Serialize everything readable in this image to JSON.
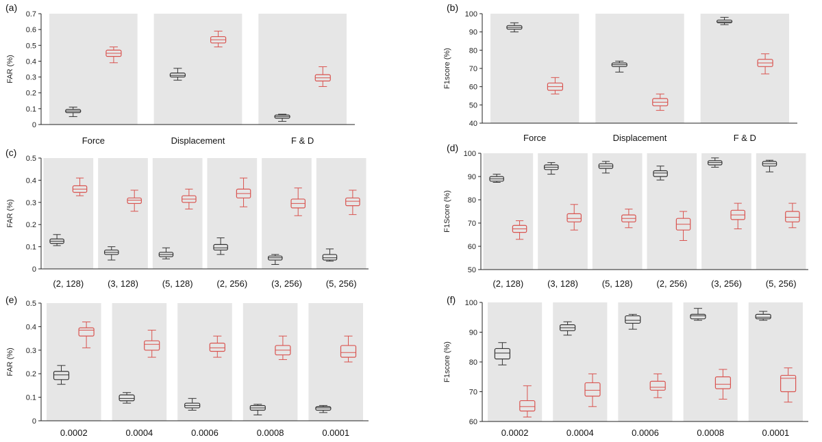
{
  "colors": {
    "background_band": "#e6e6e6",
    "series_a": "#333333",
    "series_b": "#d9534f",
    "axis": "#222222"
  },
  "chart_data": [
    {
      "id": "a",
      "panel_label": "(a)",
      "type": "box",
      "ylabel": "FAR (%)",
      "ylim": [
        0,
        0.7
      ],
      "yticks": [
        "0",
        "0.1",
        "0.2",
        "0.3",
        "0.4",
        "0.5",
        "0.6",
        "0.7"
      ],
      "categories": [
        "Force",
        "Displacement",
        "F & D"
      ],
      "series": [
        {
          "name": "dark",
          "boxes": [
            {
              "whislo": 0.05,
              "q1": 0.075,
              "med": 0.085,
              "q3": 0.095,
              "whishi": 0.11
            },
            {
              "whislo": 0.28,
              "q1": 0.3,
              "med": 0.31,
              "q3": 0.325,
              "whishi": 0.355
            },
            {
              "whislo": 0.02,
              "q1": 0.04,
              "med": 0.05,
              "q3": 0.06,
              "whishi": 0.065
            }
          ]
        },
        {
          "name": "red",
          "boxes": [
            {
              "whislo": 0.39,
              "q1": 0.43,
              "med": 0.45,
              "q3": 0.47,
              "whishi": 0.49
            },
            {
              "whislo": 0.49,
              "q1": 0.515,
              "med": 0.535,
              "q3": 0.555,
              "whishi": 0.59
            },
            {
              "whislo": 0.24,
              "q1": 0.275,
              "med": 0.295,
              "q3": 0.315,
              "whishi": 0.365
            }
          ]
        }
      ]
    },
    {
      "id": "b",
      "panel_label": "(b)",
      "type": "box",
      "ylabel": "F1score (%)",
      "ylim": [
        40,
        100
      ],
      "yticks": [
        "40",
        "50",
        "60",
        "70",
        "80",
        "90",
        "100"
      ],
      "categories": [
        "Force",
        "Displacement",
        "F & D"
      ],
      "series": [
        {
          "name": "dark",
          "boxes": [
            {
              "whislo": 90,
              "q1": 91.5,
              "med": 92.5,
              "q3": 93.5,
              "whishi": 95
            },
            {
              "whislo": 68,
              "q1": 71,
              "med": 72,
              "q3": 73,
              "whishi": 74
            },
            {
              "whislo": 94,
              "q1": 95,
              "med": 95.5,
              "q3": 96.5,
              "whishi": 98
            }
          ]
        },
        {
          "name": "red",
          "boxes": [
            {
              "whislo": 56,
              "q1": 58,
              "med": 60,
              "q3": 62,
              "whishi": 65
            },
            {
              "whislo": 47,
              "q1": 49.5,
              "med": 51.5,
              "q3": 53.5,
              "whishi": 56
            },
            {
              "whislo": 67,
              "q1": 71,
              "med": 73,
              "q3": 75,
              "whishi": 78
            }
          ]
        }
      ]
    },
    {
      "id": "c",
      "panel_label": "(c)",
      "type": "box",
      "ylabel": "FAR (%)",
      "ylim": [
        0,
        0.5
      ],
      "yticks": [
        "0",
        "0.1",
        "0.2",
        "0.3",
        "0.4",
        "0.5"
      ],
      "categories": [
        "(2, 128)",
        "(3, 128)",
        "(5, 128)",
        "(2, 256)",
        "(3, 256)",
        "(5, 256)"
      ],
      "series": [
        {
          "name": "dark",
          "boxes": [
            {
              "whislo": 0.105,
              "q1": 0.115,
              "med": 0.125,
              "q3": 0.135,
              "whishi": 0.155
            },
            {
              "whislo": 0.04,
              "q1": 0.065,
              "med": 0.075,
              "q3": 0.085,
              "whishi": 0.1
            },
            {
              "whislo": 0.045,
              "q1": 0.055,
              "med": 0.065,
              "q3": 0.075,
              "whishi": 0.095
            },
            {
              "whislo": 0.065,
              "q1": 0.085,
              "med": 0.095,
              "q3": 0.11,
              "whishi": 0.14
            },
            {
              "whislo": 0.02,
              "q1": 0.04,
              "med": 0.05,
              "q3": 0.058,
              "whishi": 0.065
            },
            {
              "whislo": 0.035,
              "q1": 0.04,
              "med": 0.05,
              "q3": 0.065,
              "whishi": 0.09
            }
          ]
        },
        {
          "name": "red",
          "boxes": [
            {
              "whislo": 0.33,
              "q1": 0.345,
              "med": 0.36,
              "q3": 0.375,
              "whishi": 0.41
            },
            {
              "whislo": 0.26,
              "q1": 0.295,
              "med": 0.31,
              "q3": 0.32,
              "whishi": 0.355
            },
            {
              "whislo": 0.27,
              "q1": 0.3,
              "med": 0.315,
              "q3": 0.33,
              "whishi": 0.36
            },
            {
              "whislo": 0.28,
              "q1": 0.32,
              "med": 0.34,
              "q3": 0.36,
              "whishi": 0.41
            },
            {
              "whislo": 0.24,
              "q1": 0.275,
              "med": 0.295,
              "q3": 0.315,
              "whishi": 0.365
            },
            {
              "whislo": 0.245,
              "q1": 0.285,
              "med": 0.305,
              "q3": 0.32,
              "whishi": 0.355
            }
          ]
        }
      ]
    },
    {
      "id": "d",
      "panel_label": "(d)",
      "type": "box",
      "ylabel": "F1Score (%)",
      "ylim": [
        50,
        100
      ],
      "yticks": [
        "50",
        "60",
        "70",
        "80",
        "90",
        "100"
      ],
      "categories": [
        "(2, 128)",
        "(3, 128)",
        "(5, 128)",
        "(2, 256)",
        "(3, 256)",
        "(5, 256)"
      ],
      "series": [
        {
          "name": "dark",
          "boxes": [
            {
              "whislo": 87.5,
              "q1": 88,
              "med": 89,
              "q3": 90,
              "whishi": 91
            },
            {
              "whislo": 91,
              "q1": 93,
              "med": 94,
              "q3": 95,
              "whishi": 96
            },
            {
              "whislo": 91.5,
              "q1": 93.5,
              "med": 94.5,
              "q3": 95.5,
              "whishi": 96.5
            },
            {
              "whislo": 88.5,
              "q1": 90,
              "med": 91.5,
              "q3": 92.5,
              "whishi": 94.5
            },
            {
              "whislo": 94,
              "q1": 95,
              "med": 96,
              "q3": 96.8,
              "whishi": 98
            },
            {
              "whislo": 92,
              "q1": 94.5,
              "med": 95.5,
              "q3": 96.5,
              "whishi": 97
            }
          ]
        },
        {
          "name": "red",
          "boxes": [
            {
              "whislo": 63,
              "q1": 66,
              "med": 67.5,
              "q3": 69,
              "whishi": 71
            },
            {
              "whislo": 67,
              "q1": 70.5,
              "med": 72,
              "q3": 74,
              "whishi": 78
            },
            {
              "whislo": 68,
              "q1": 70.5,
              "med": 72,
              "q3": 73.5,
              "whishi": 76
            },
            {
              "whislo": 62.5,
              "q1": 67,
              "med": 69.5,
              "q3": 72,
              "whishi": 75
            },
            {
              "whislo": 67.5,
              "q1": 71.5,
              "med": 73.5,
              "q3": 75.5,
              "whishi": 78.5
            },
            {
              "whislo": 68,
              "q1": 70.5,
              "med": 72.5,
              "q3": 75,
              "whishi": 78.5
            }
          ]
        }
      ]
    },
    {
      "id": "e",
      "panel_label": "(e)",
      "type": "box",
      "ylabel": "FAR (%)",
      "ylim": [
        0,
        0.5
      ],
      "yticks": [
        "0",
        "0.1",
        "0.2",
        "0.3",
        "0.4",
        "0.5"
      ],
      "categories": [
        "0.0002",
        "0.0004",
        "0.0006",
        "0.0008",
        "0.0001"
      ],
      "series": [
        {
          "name": "dark",
          "boxes": [
            {
              "whislo": 0.155,
              "q1": 0.175,
              "med": 0.195,
              "q3": 0.21,
              "whishi": 0.235
            },
            {
              "whislo": 0.075,
              "q1": 0.085,
              "med": 0.095,
              "q3": 0.11,
              "whishi": 0.12
            },
            {
              "whislo": 0.045,
              "q1": 0.055,
              "med": 0.065,
              "q3": 0.075,
              "whishi": 0.095
            },
            {
              "whislo": 0.025,
              "q1": 0.045,
              "med": 0.055,
              "q3": 0.065,
              "whishi": 0.07
            },
            {
              "whislo": 0.035,
              "q1": 0.045,
              "med": 0.055,
              "q3": 0.06,
              "whishi": 0.065
            }
          ]
        },
        {
          "name": "red",
          "boxes": [
            {
              "whislo": 0.31,
              "q1": 0.36,
              "med": 0.385,
              "q3": 0.395,
              "whishi": 0.42
            },
            {
              "whislo": 0.27,
              "q1": 0.3,
              "med": 0.325,
              "q3": 0.34,
              "whishi": 0.385
            },
            {
              "whislo": 0.27,
              "q1": 0.295,
              "med": 0.31,
              "q3": 0.33,
              "whishi": 0.36
            },
            {
              "whislo": 0.26,
              "q1": 0.28,
              "med": 0.3,
              "q3": 0.32,
              "whishi": 0.36
            },
            {
              "whislo": 0.25,
              "q1": 0.27,
              "med": 0.29,
              "q3": 0.32,
              "whishi": 0.36
            }
          ]
        }
      ]
    },
    {
      "id": "f",
      "panel_label": "(f)",
      "type": "box",
      "ylabel": "F1score (%)",
      "ylim": [
        60,
        100
      ],
      "yticks": [
        "60",
        "70",
        "80",
        "90",
        "100"
      ],
      "categories": [
        "0.0002",
        "0.0004",
        "0.0006",
        "0.0008",
        "0.0001"
      ],
      "series": [
        {
          "name": "dark",
          "boxes": [
            {
              "whislo": 79,
              "q1": 81,
              "med": 83,
              "q3": 84.5,
              "whishi": 86.5
            },
            {
              "whislo": 89,
              "q1": 90.5,
              "med": 91.5,
              "q3": 92.5,
              "whishi": 93.5
            },
            {
              "whislo": 91,
              "q1": 93,
              "med": 94,
              "q3": 95.5,
              "whishi": 96
            },
            {
              "whislo": 94,
              "q1": 94.5,
              "med": 95.5,
              "q3": 96,
              "whishi": 98
            },
            {
              "whislo": 94,
              "q1": 94.5,
              "med": 95,
              "q3": 96,
              "whishi": 97
            }
          ]
        },
        {
          "name": "red",
          "boxes": [
            {
              "whislo": 61.5,
              "q1": 63.5,
              "med": 65,
              "q3": 67,
              "whishi": 72
            },
            {
              "whislo": 65,
              "q1": 68.5,
              "med": 70.5,
              "q3": 73,
              "whishi": 76
            },
            {
              "whislo": 68,
              "q1": 70.5,
              "med": 71.5,
              "q3": 73.5,
              "whishi": 76
            },
            {
              "whislo": 67.5,
              "q1": 71,
              "med": 72.5,
              "q3": 75,
              "whishi": 77.5
            },
            {
              "whislo": 66.5,
              "q1": 70,
              "med": 74.5,
              "q3": 75.5,
              "whishi": 78
            }
          ]
        }
      ]
    }
  ]
}
